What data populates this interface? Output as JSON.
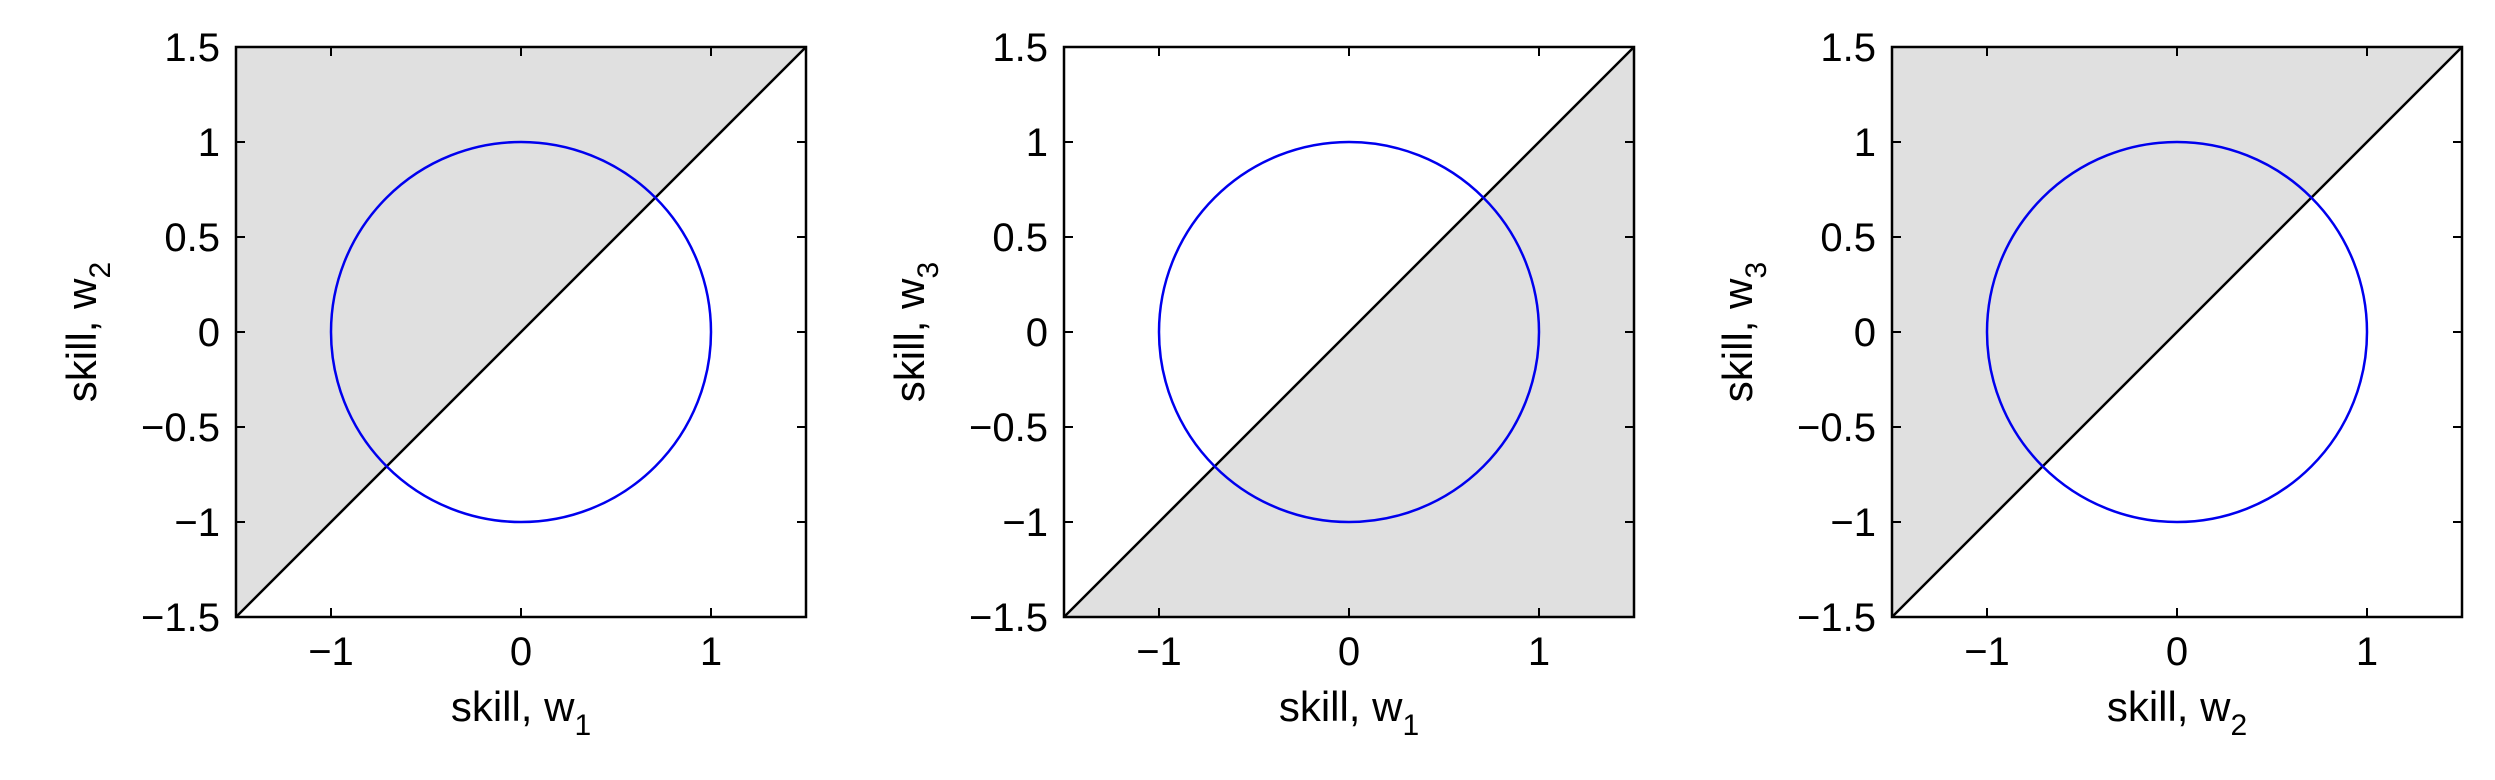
{
  "chart_data": [
    {
      "type": "line",
      "xlabel": "skill, w",
      "xlabel_sub": "1",
      "ylabel": "skill, w",
      "ylabel_sub": "2",
      "xlim": [
        -1.5,
        1.5
      ],
      "ylim": [
        -1.5,
        1.5
      ],
      "xticks": [
        -1,
        0,
        1
      ],
      "xtick_labels": [
        "−1",
        "0",
        "1"
      ],
      "yticks": [
        -1.5,
        -1,
        -0.5,
        0,
        0.5,
        1,
        1.5
      ],
      "ytick_labels": [
        "−1.5",
        "−1",
        "−0.5",
        "0",
        "0.5",
        "1",
        "1.5"
      ],
      "shaded_region": "upper-left",
      "shade_color": "#e0e0e0",
      "diagonal_line": {
        "x": [
          -1.5,
          1.5
        ],
        "y": [
          -1.5,
          1.5
        ],
        "color": "#000000"
      },
      "circle": {
        "cx": 0,
        "cy": 0,
        "r": 1,
        "color": "#0000ee"
      },
      "grid": false
    },
    {
      "type": "line",
      "xlabel": "skill, w",
      "xlabel_sub": "1",
      "ylabel": "skill, w",
      "ylabel_sub": "3",
      "xlim": [
        -1.5,
        1.5
      ],
      "ylim": [
        -1.5,
        1.5
      ],
      "xticks": [
        -1,
        0,
        1
      ],
      "xtick_labels": [
        "−1",
        "0",
        "1"
      ],
      "yticks": [
        -1.5,
        -1,
        -0.5,
        0,
        0.5,
        1,
        1.5
      ],
      "ytick_labels": [
        "−1.5",
        "−1",
        "−0.5",
        "0",
        "0.5",
        "1",
        "1.5"
      ],
      "shaded_region": "lower-right",
      "shade_color": "#e0e0e0",
      "diagonal_line": {
        "x": [
          -1.5,
          1.5
        ],
        "y": [
          -1.5,
          1.5
        ],
        "color": "#000000"
      },
      "circle": {
        "cx": 0,
        "cy": 0,
        "r": 1,
        "color": "#0000ee"
      },
      "grid": false
    },
    {
      "type": "line",
      "xlabel": "skill, w",
      "xlabel_sub": "2",
      "ylabel": "skill, w",
      "ylabel_sub": "3",
      "xlim": [
        -1.5,
        1.5
      ],
      "ylim": [
        -1.5,
        1.5
      ],
      "xticks": [
        -1,
        0,
        1
      ],
      "xtick_labels": [
        "−1",
        "0",
        "1"
      ],
      "yticks": [
        -1.5,
        -1,
        -0.5,
        0,
        0.5,
        1,
        1.5
      ],
      "ytick_labels": [
        "−1.5",
        "−1",
        "−0.5",
        "0",
        "0.5",
        "1",
        "1.5"
      ],
      "shaded_region": "upper-left",
      "shade_color": "#e0e0e0",
      "diagonal_line": {
        "x": [
          -1.5,
          1.5
        ],
        "y": [
          -1.5,
          1.5
        ],
        "color": "#000000"
      },
      "circle": {
        "cx": 0,
        "cy": 0,
        "r": 1,
        "color": "#0000ee"
      },
      "grid": false
    }
  ]
}
